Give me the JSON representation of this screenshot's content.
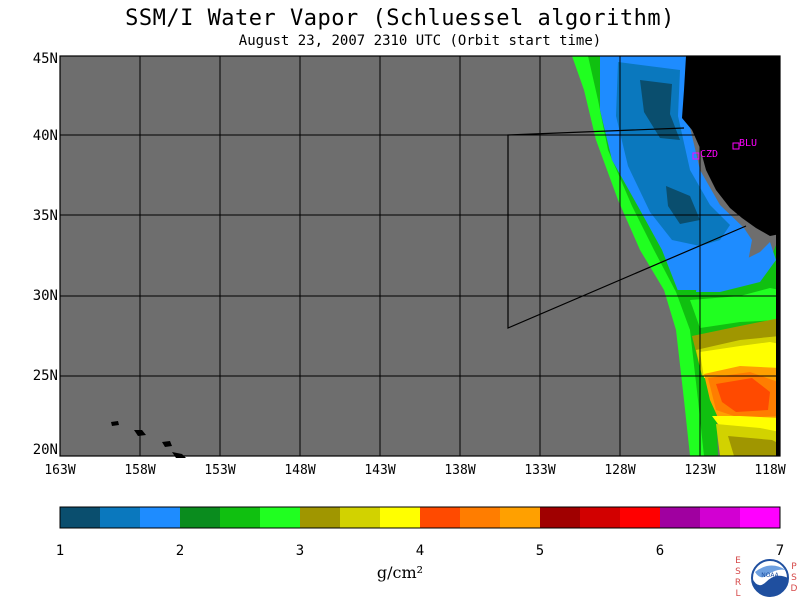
{
  "title": "SSM/I Water Vapor (Schluessel algorithm)",
  "subtitle": "August 23, 2007  2310 UTC  (Orbit start time)",
  "lat_labels": [
    "45N",
    "40N",
    "35N",
    "30N",
    "25N",
    "20N"
  ],
  "lon_labels": [
    "163W",
    "158W",
    "153W",
    "148W",
    "143W",
    "138W",
    "133W",
    "128W",
    "123W",
    "118W"
  ],
  "stations": [
    {
      "name": "CZD",
      "lat": 38.6,
      "lon": -123.2
    },
    {
      "name": "BLU",
      "lat": 39.3,
      "lon": -120.7
    }
  ],
  "colorbar": {
    "ticks": [
      "1",
      "2",
      "3",
      "4",
      "5",
      "6",
      "7"
    ],
    "unit": "g/cm²",
    "colors": [
      "#0a4e6e",
      "#0a78be",
      "#1e8cff",
      "#0a8c1e",
      "#10c010",
      "#20ff20",
      "#a09600",
      "#d2d200",
      "#ffff00",
      "#ff4a00",
      "#ff7d00",
      "#ffa000",
      "#a00000",
      "#d20000",
      "#ff0000",
      "#a000a0",
      "#d200d2",
      "#ff00ff"
    ]
  },
  "logo": {
    "left_text": "ESRL",
    "right_text": "PSD",
    "center_text": "NOAA"
  },
  "colors": {
    "land": "#000000",
    "no_data": "#6e6e6e",
    "station": "#ff00ff"
  }
}
